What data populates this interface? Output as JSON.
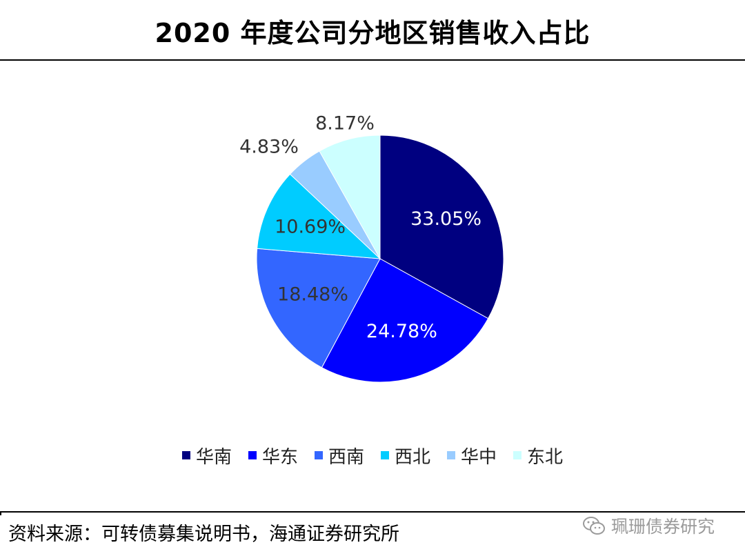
{
  "title": "2020 年度公司分地区销售收入占比",
  "chart_data": {
    "type": "pie",
    "title": "2020 年度公司分地区销售收入占比",
    "start_angle_deg": 0,
    "direction": "clockwise",
    "legend_position": "bottom",
    "categories": [
      "华南",
      "华东",
      "西南",
      "西北",
      "华中",
      "东北"
    ],
    "values": [
      33.05,
      24.78,
      18.48,
      10.69,
      4.83,
      8.17
    ],
    "labels": [
      "33.05%",
      "24.78%",
      "18.48%",
      "10.69%",
      "4.83%",
      "8.17%"
    ],
    "colors": [
      "#000080",
      "#0000ff",
      "#3366ff",
      "#00ccff",
      "#99ccff",
      "#ccffff"
    ],
    "label_colors": [
      "#ffffff",
      "#ffffff",
      "#333333",
      "#333333",
      "#333333",
      "#333333"
    ],
    "label_placement": [
      "inside",
      "inside",
      "inside",
      "inside",
      "outside",
      "outside"
    ]
  },
  "source": "资料来源：可转债募集说明书，海通证券研究所",
  "watermark": "珮珊债券研究",
  "watermark_icon": "wechat-icon"
}
